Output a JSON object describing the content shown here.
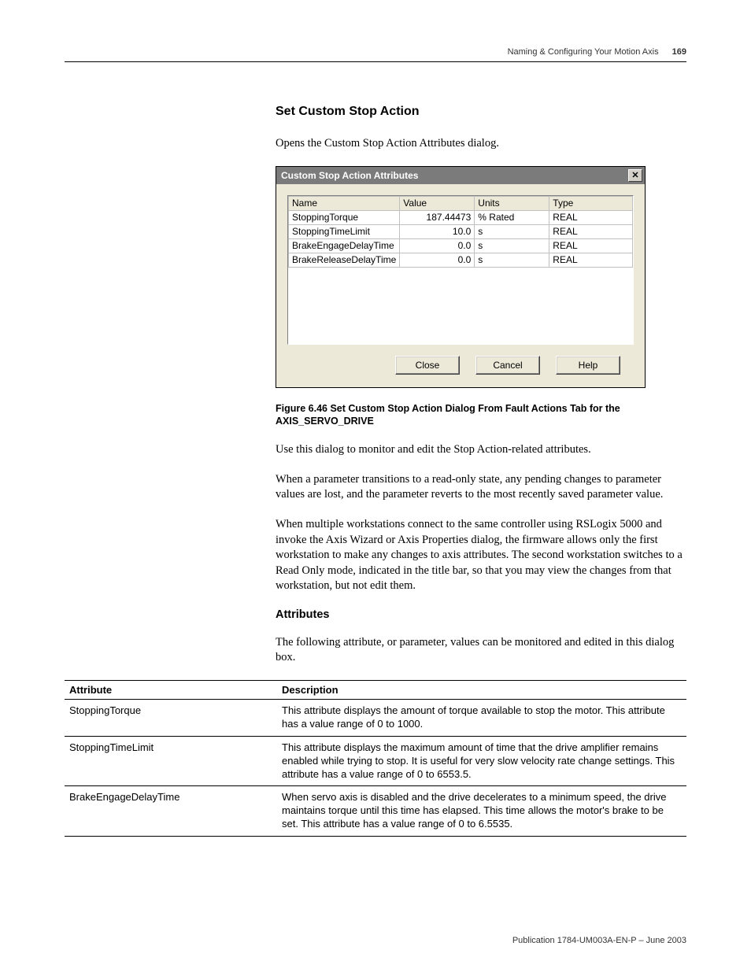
{
  "runningHead": {
    "chapter": "Naming & Configuring Your Motion Axis",
    "pageNum": "169"
  },
  "section": {
    "title": "Set Custom Stop Action",
    "intro": "Opens the Custom Stop Action Attributes dialog."
  },
  "dialog": {
    "title": "Custom Stop Action Attributes",
    "headers": {
      "name": "Name",
      "value": "Value",
      "units": "Units",
      "type": "Type"
    },
    "rows": [
      {
        "name": "StoppingTorque",
        "value": "187.44473",
        "units": "% Rated",
        "type": "REAL"
      },
      {
        "name": "StoppingTimeLimit",
        "value": "10.0",
        "units": "s",
        "type": "REAL"
      },
      {
        "name": "BrakeEngageDelayTime",
        "value": "0.0",
        "units": "s",
        "type": "REAL"
      },
      {
        "name": "BrakeReleaseDelayTime",
        "value": "0.0",
        "units": "s",
        "type": "REAL"
      }
    ],
    "buttons": {
      "close": "Close",
      "cancel": "Cancel",
      "help": "Help"
    },
    "closeGlyph": "✕"
  },
  "figureCaption": "Figure 6.46 Set Custom Stop Action Dialog From Fault Actions Tab for the AXIS_SERVO_DRIVE",
  "para1": "Use this dialog to monitor and edit the Stop Action-related attributes.",
  "para2": "When a parameter transitions to a read-only state, any pending changes to parameter values are lost, and the parameter reverts to the most recently saved parameter value.",
  "para3": "When multiple workstations connect to the same controller using RSLogix 5000 and invoke the Axis Wizard or Axis Properties dialog, the firmware allows only the first workstation to make any changes to axis attributes. The second workstation switches to a Read Only mode, indicated in the title bar, so that you may view the changes from that workstation, but not edit them.",
  "attributesHeading": "Attributes",
  "attributesIntro": "The following attribute, or parameter, values can be monitored and edited in this dialog box.",
  "attrTable": {
    "headers": {
      "attr": "Attribute",
      "desc": "Description"
    },
    "rows": [
      {
        "attr": "StoppingTorque",
        "desc": "This attribute displays the amount of torque available to stop the motor. This attribute has a value range of 0 to 1000."
      },
      {
        "attr": "StoppingTimeLimit",
        "desc": "This attribute displays the maximum amount of time that the drive amplifier remains enabled while trying to stop. It is useful for very slow velocity rate change settings. This attribute has a value range of 0 to 6553.5."
      },
      {
        "attr": "BrakeEngageDelayTime",
        "desc": "When servo axis is disabled and the drive decelerates to a minimum speed, the drive maintains torque until this time has elapsed. This time allows the motor's brake to be set. This attribute has a value range of 0 to 6.5535."
      }
    ]
  },
  "footer": "Publication 1784-UM003A-EN-P – June 2003"
}
